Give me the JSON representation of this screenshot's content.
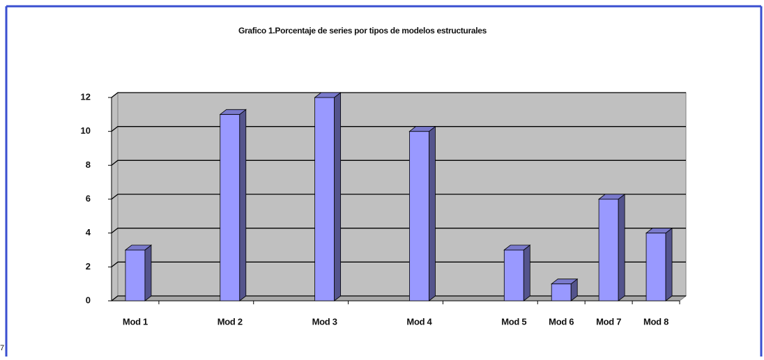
{
  "chart_data": {
    "type": "bar",
    "title": "Grafico 1.Porcentaje de series por tipos de modelos estructurales",
    "categories": [
      "Mod 1",
      null,
      "Mod 2",
      null,
      "Mod 3",
      null,
      "Mod 4",
      null,
      "Mod 5",
      "Mod 6",
      "Mod 7",
      "Mod 8"
    ],
    "values": [
      3,
      null,
      11,
      null,
      12,
      null,
      10,
      null,
      3,
      1,
      6,
      4
    ],
    "color": "#9999ff",
    "ylim": [
      0,
      12
    ],
    "yticks": [
      0,
      2,
      4,
      6,
      8,
      10,
      12
    ],
    "grid": true
  },
  "page_marker": "7"
}
